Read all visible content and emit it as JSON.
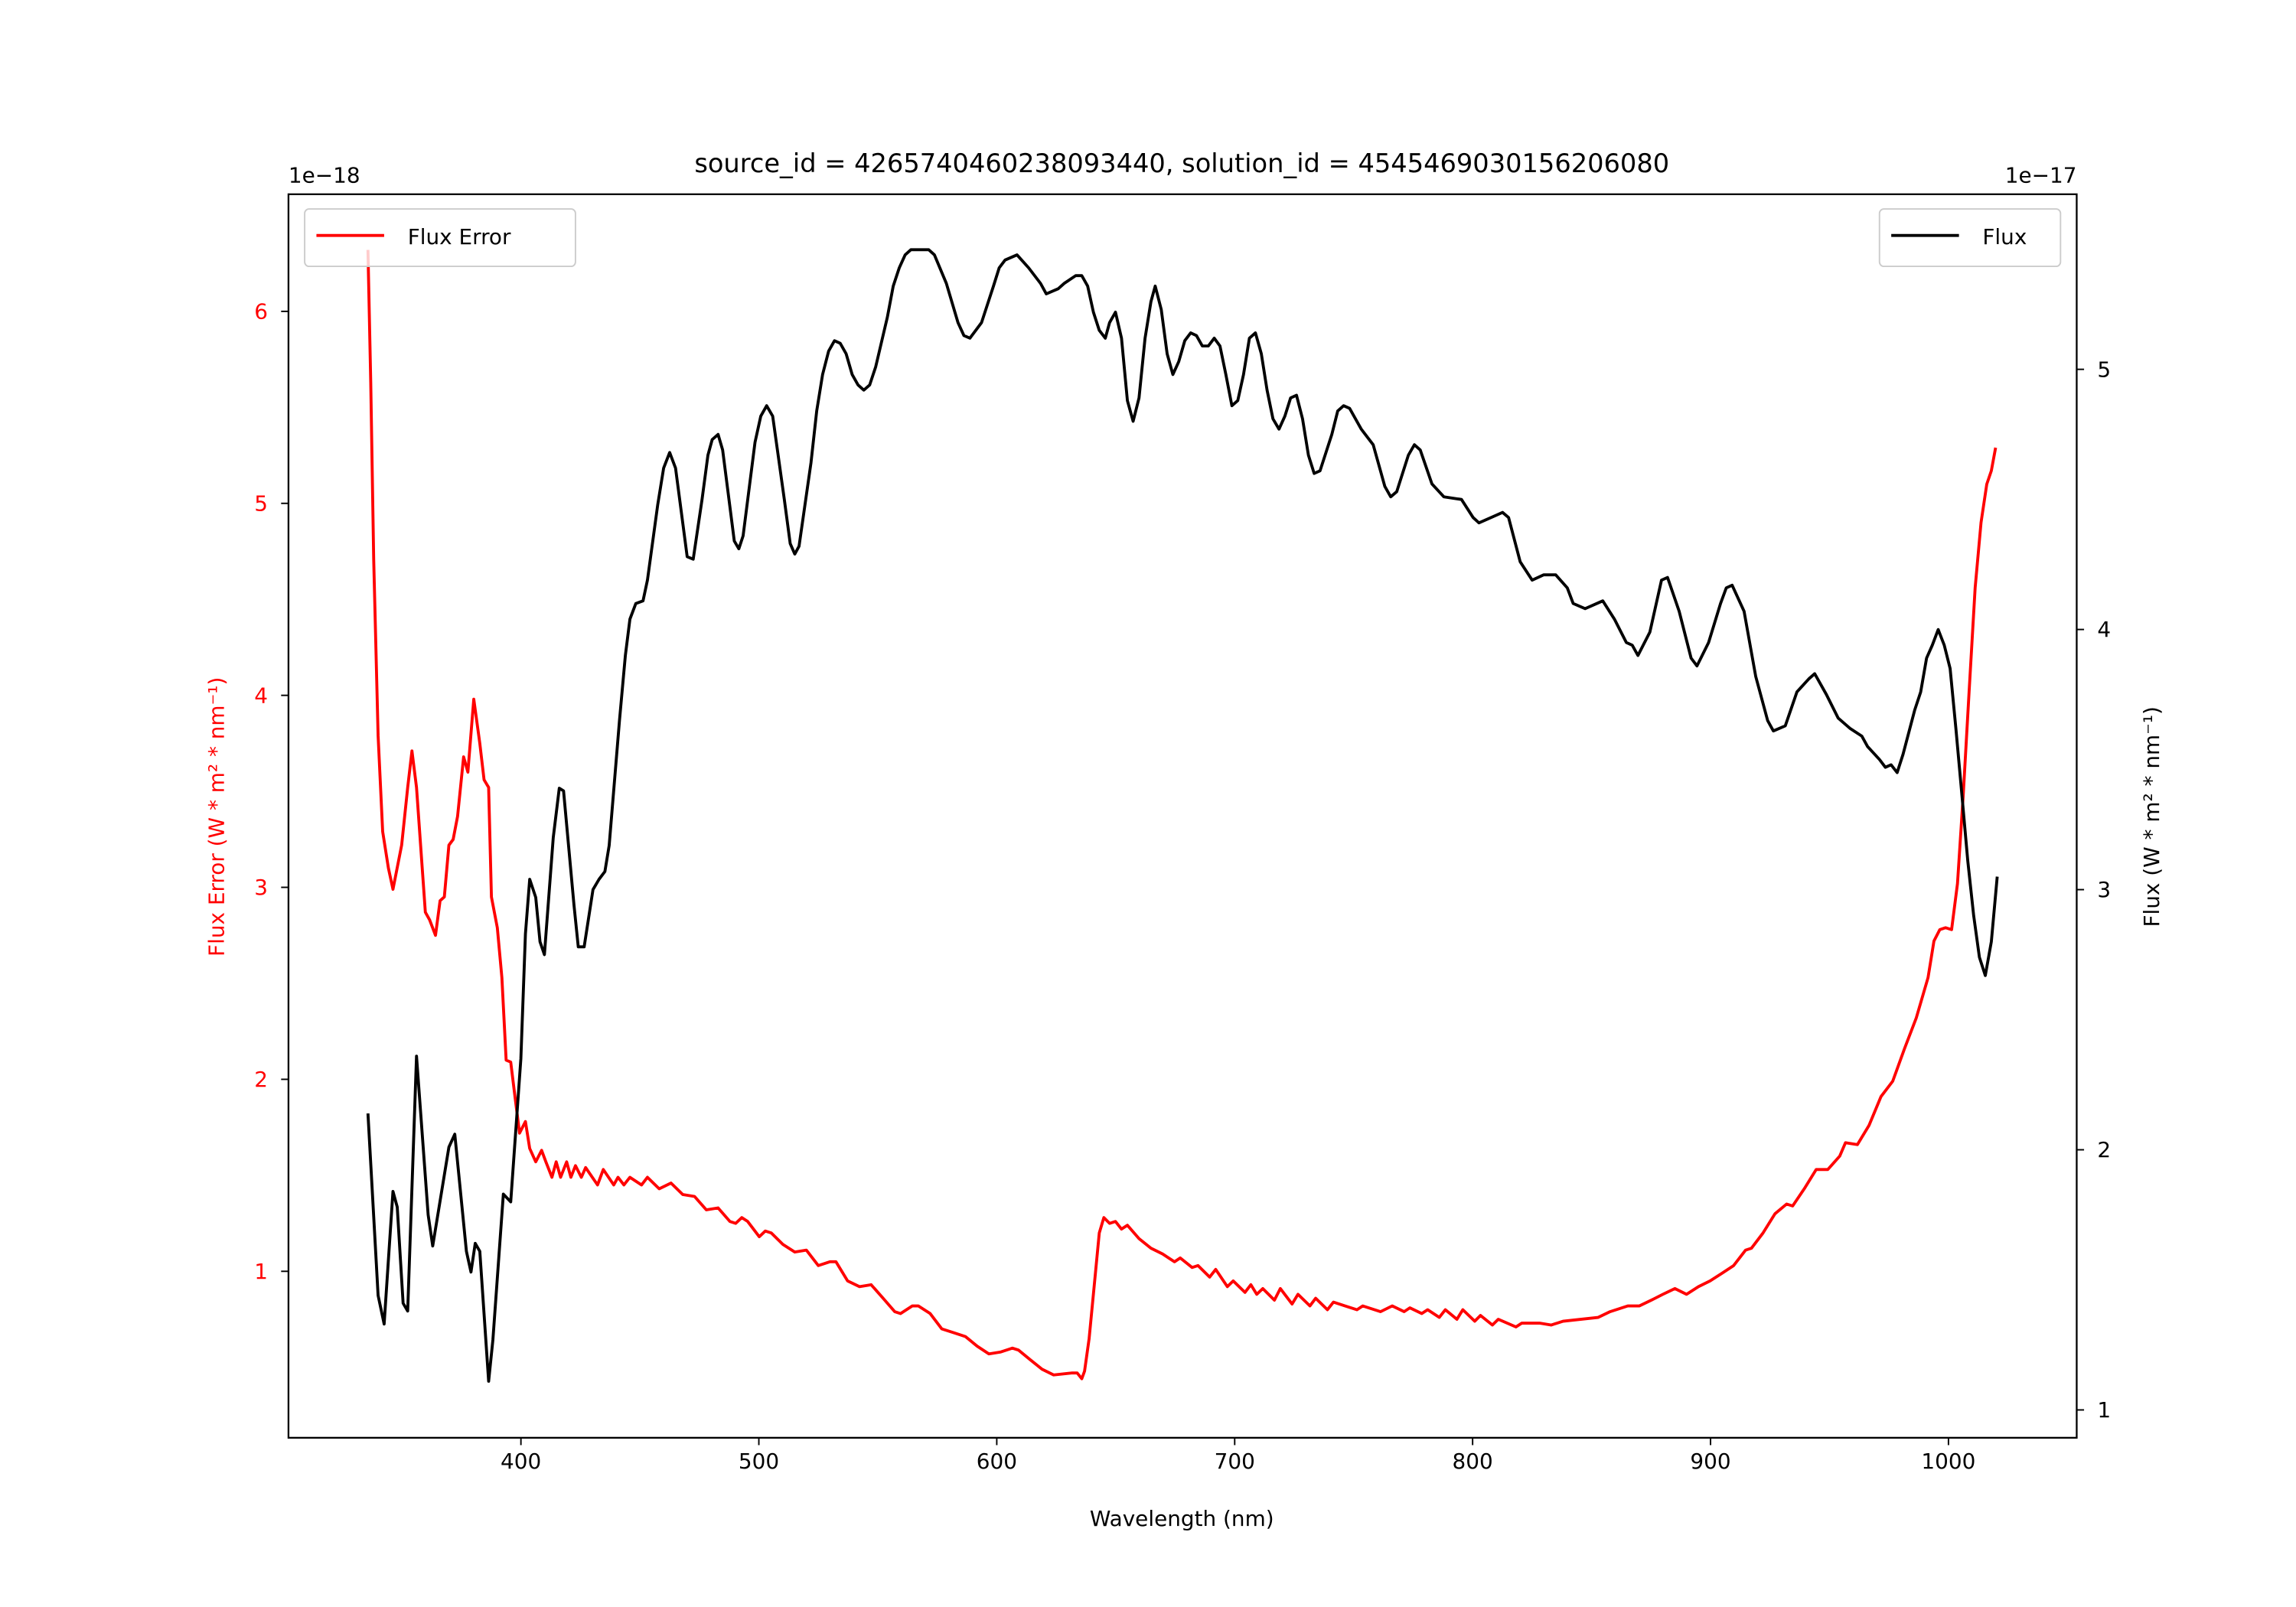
{
  "chart_data": {
    "type": "line",
    "title": "source_id = 4265740460238093440, solution_id = 4545469030156206080",
    "xlabel": "Wavelength (nm)",
    "ylabel_left": "Flux Error (W * m² * nm⁻¹)",
    "ylabel_right": "Flux (W * m² * nm⁻¹)",
    "offset_left": "1e−18",
    "offset_right": "1e−17",
    "xlim": [
      302.3,
      1053.9
    ],
    "ylim_left": [
      0.133,
      6.61
    ],
    "ylim_right": [
      0.893,
      5.673
    ],
    "xticks": [
      400,
      500,
      600,
      700,
      800,
      900,
      1000
    ],
    "yticks_left": [
      1,
      2,
      3,
      4,
      5,
      6
    ],
    "yticks_right": [
      1,
      2,
      3,
      4,
      5
    ],
    "grid": false,
    "colors": {
      "flux_error": "#ff0000",
      "flux": "#000000",
      "left_axis_text": "#ff0000"
    },
    "legend_left": {
      "placement": "top-left",
      "label": "Flux Error"
    },
    "legend_right": {
      "placement": "top-right",
      "label": "Flux"
    },
    "series": [
      {
        "name": "Flux Error",
        "axis": "left",
        "x": [
          335.7,
          336.9,
          338.1,
          340.0,
          341.9,
          344.3,
          346.2,
          349.9,
          352.4,
          354.2,
          356.1,
          359.8,
          361.6,
          364.1,
          366.0,
          367.8,
          369.7,
          371.5,
          373.4,
          375.9,
          377.7,
          380.2,
          382.7,
          384.5,
          386.4,
          387.6,
          390.1,
          392.0,
          393.8,
          395.7,
          397.5,
          399.4,
          401.9,
          403.7,
          406.2,
          408.7,
          410.5,
          413.0,
          414.8,
          416.7,
          419.2,
          421.0,
          422.9,
          425.4,
          427.2,
          432.2,
          434.6,
          439.0,
          440.8,
          443.3,
          445.8,
          450.7,
          453.2,
          458.1,
          463.1,
          468.0,
          473.0,
          477.9,
          482.9,
          487.8,
          490.3,
          492.8,
          495.3,
          500.2,
          502.7,
          505.2,
          510.1,
          515.1,
          520.0,
          525.0,
          529.9,
          532.4,
          537.3,
          542.3,
          547.2,
          552.2,
          557.1,
          559.6,
          564.5,
          567.0,
          572.0,
          576.9,
          581.9,
          586.8,
          591.8,
          596.7,
          601.7,
          606.6,
          609.1,
          614.0,
          619.0,
          623.9,
          631.4,
          633.8,
          635.7,
          636.9,
          638.8,
          640.6,
          643.1,
          645.0,
          647.4,
          649.9,
          652.4,
          654.9,
          659.8,
          664.8,
          669.7,
          674.7,
          677.1,
          682.1,
          684.6,
          689.5,
          692.0,
          696.9,
          699.4,
          704.3,
          706.8,
          709.3,
          711.8,
          716.7,
          719.2,
          724.1,
          726.6,
          731.6,
          734.0,
          739.0,
          741.5,
          746.4,
          751.4,
          753.8,
          761.3,
          766.2,
          771.2,
          773.6,
          778.6,
          781.1,
          786.0,
          788.5,
          793.4,
          795.9,
          800.9,
          803.3,
          808.3,
          810.8,
          818.2,
          820.7,
          828.1,
          833.0,
          838.0,
          845.4,
          852.8,
          857.8,
          865.2,
          870.1,
          875.1,
          880.0,
          885.0,
          889.9,
          894.9,
          899.8,
          904.8,
          909.7,
          914.7,
          917.2,
          922.1,
          927.1,
          932.0,
          934.5,
          939.4,
          944.4,
          949.3,
          954.3,
          956.7,
          961.7,
          966.6,
          971.6,
          976.6,
          981.5,
          986.5,
          991.4,
          993.9,
          996.4,
          998.8,
          1001.3,
          1003.8,
          1006.2,
          1008.7,
          1011.2,
          1013.7,
          1016.1,
          1018.0,
          1019.8
        ],
        "y": [
          6.32,
          5.63,
          4.71,
          3.79,
          3.29,
          3.1,
          2.99,
          3.22,
          3.52,
          3.71,
          3.52,
          2.87,
          2.83,
          2.75,
          2.93,
          2.95,
          3.22,
          3.25,
          3.37,
          3.68,
          3.6,
          3.98,
          3.75,
          3.56,
          3.52,
          2.95,
          2.79,
          2.53,
          2.1,
          2.09,
          1.91,
          1.72,
          1.78,
          1.64,
          1.57,
          1.63,
          1.57,
          1.49,
          1.57,
          1.49,
          1.57,
          1.49,
          1.55,
          1.49,
          1.54,
          1.45,
          1.53,
          1.45,
          1.49,
          1.45,
          1.49,
          1.45,
          1.49,
          1.43,
          1.46,
          1.4,
          1.39,
          1.32,
          1.33,
          1.26,
          1.25,
          1.28,
          1.26,
          1.18,
          1.21,
          1.2,
          1.14,
          1.1,
          1.11,
          1.03,
          1.05,
          1.05,
          0.95,
          0.92,
          0.93,
          0.86,
          0.79,
          0.78,
          0.82,
          0.82,
          0.78,
          0.7,
          0.68,
          0.66,
          0.61,
          0.57,
          0.58,
          0.6,
          0.59,
          0.54,
          0.49,
          0.46,
          0.47,
          0.47,
          0.44,
          0.48,
          0.65,
          0.88,
          1.2,
          1.28,
          1.25,
          1.26,
          1.22,
          1.24,
          1.17,
          1.12,
          1.09,
          1.05,
          1.07,
          1.02,
          1.03,
          0.97,
          1.01,
          0.92,
          0.95,
          0.89,
          0.93,
          0.88,
          0.91,
          0.85,
          0.91,
          0.83,
          0.88,
          0.82,
          0.86,
          0.8,
          0.84,
          0.82,
          0.8,
          0.82,
          0.79,
          0.82,
          0.79,
          0.81,
          0.78,
          0.8,
          0.76,
          0.8,
          0.75,
          0.8,
          0.74,
          0.77,
          0.72,
          0.75,
          0.71,
          0.73,
          0.73,
          0.72,
          0.74,
          0.75,
          0.76,
          0.79,
          0.82,
          0.82,
          0.85,
          0.88,
          0.91,
          0.88,
          0.92,
          0.95,
          0.99,
          1.03,
          1.11,
          1.12,
          1.2,
          1.3,
          1.35,
          1.34,
          1.43,
          1.53,
          1.53,
          1.6,
          1.67,
          1.66,
          1.76,
          1.91,
          1.99,
          2.16,
          2.32,
          2.53,
          2.72,
          2.78,
          2.79,
          2.78,
          3.02,
          3.48,
          4.02,
          4.56,
          4.9,
          5.1,
          5.17,
          5.29
        ]
      },
      {
        "name": "Flux",
        "axis": "right",
        "x": [
          335.7,
          340.0,
          342.5,
          346.2,
          348.0,
          350.5,
          352.4,
          356.1,
          361.0,
          362.9,
          369.7,
          372.2,
          377.1,
          379.0,
          380.8,
          382.7,
          386.4,
          388.2,
          392.6,
          395.7,
          400.0,
          401.9,
          403.7,
          406.2,
          408.0,
          409.9,
          413.6,
          416.1,
          417.9,
          422.3,
          424.1,
          426.6,
          430.3,
          432.8,
          435.3,
          437.1,
          441.4,
          443.9,
          445.8,
          448.3,
          451.3,
          453.2,
          457.5,
          460.0,
          462.5,
          465.0,
          469.9,
          472.4,
          476.1,
          478.6,
          480.4,
          482.9,
          484.8,
          489.7,
          491.6,
          493.4,
          498.4,
          500.8,
          503.3,
          505.8,
          510.7,
          513.2,
          515.1,
          516.9,
          521.9,
          524.3,
          526.8,
          529.3,
          531.8,
          534.2,
          536.7,
          539.2,
          541.7,
          544.1,
          546.6,
          549.1,
          554.0,
          556.5,
          559.0,
          561.5,
          563.9,
          571.4,
          573.8,
          578.8,
          583.7,
          586.2,
          588.7,
          593.6,
          598.6,
          601.0,
          603.5,
          608.5,
          613.4,
          618.4,
          620.8,
          625.8,
          628.3,
          633.2,
          635.7,
          638.2,
          640.6,
          643.1,
          645.6,
          647.4,
          649.9,
          652.4,
          654.9,
          657.3,
          659.8,
          662.3,
          664.8,
          666.6,
          669.1,
          671.6,
          674.0,
          676.5,
          679.0,
          681.5,
          683.9,
          686.4,
          688.9,
          691.4,
          693.8,
          696.3,
          698.8,
          701.3,
          703.7,
          706.2,
          708.7,
          711.2,
          713.6,
          716.1,
          718.6,
          721.1,
          723.5,
          726.0,
          728.5,
          731.0,
          733.4,
          735.9,
          740.8,
          743.3,
          745.8,
          748.3,
          753.2,
          758.2,
          763.1,
          765.6,
          768.1,
          773.0,
          775.5,
          778.0,
          782.9,
          787.9,
          795.3,
          800.2,
          802.7,
          807.7,
          812.6,
          815.1,
          820.0,
          825.0,
          829.9,
          834.9,
          839.8,
          842.3,
          847.3,
          854.7,
          859.6,
          864.6,
          867.1,
          869.5,
          874.5,
          879.4,
          881.9,
          886.8,
          891.8,
          894.3,
          899.2,
          904.2,
          906.6,
          909.1,
          914.1,
          919.0,
          924.0,
          926.4,
          931.4,
          936.3,
          941.3,
          943.8,
          948.7,
          953.6,
          958.6,
          963.6,
          966.0,
          971.0,
          973.5,
          975.9,
          978.4,
          980.9,
          985.8,
          988.3,
          990.8,
          993.2,
          995.7,
          998.2,
          1000.7,
          1003.1,
          1005.6,
          1008.1,
          1010.6,
          1013.0,
          1015.5,
          1018.0,
          1020.5
        ],
        "y": [
          2.14,
          1.44,
          1.33,
          1.84,
          1.78,
          1.41,
          1.38,
          2.36,
          1.75,
          1.63,
          2.01,
          2.06,
          1.61,
          1.53,
          1.64,
          1.61,
          1.11,
          1.27,
          1.83,
          1.8,
          2.35,
          2.83,
          3.04,
          2.97,
          2.8,
          2.75,
          3.2,
          3.39,
          3.38,
          2.94,
          2.78,
          2.78,
          3.0,
          3.04,
          3.07,
          3.17,
          3.65,
          3.9,
          4.04,
          4.1,
          4.11,
          4.19,
          4.48,
          4.62,
          4.68,
          4.62,
          4.28,
          4.27,
          4.5,
          4.67,
          4.73,
          4.75,
          4.69,
          4.34,
          4.31,
          4.36,
          4.72,
          4.82,
          4.86,
          4.82,
          4.5,
          4.33,
          4.29,
          4.32,
          4.64,
          4.84,
          4.98,
          5.07,
          5.11,
          5.1,
          5.06,
          4.98,
          4.94,
          4.92,
          4.94,
          5.01,
          5.2,
          5.32,
          5.39,
          5.44,
          5.46,
          5.46,
          5.44,
          5.33,
          5.18,
          5.13,
          5.12,
          5.18,
          5.32,
          5.39,
          5.42,
          5.44,
          5.39,
          5.33,
          5.29,
          5.31,
          5.33,
          5.36,
          5.36,
          5.32,
          5.22,
          5.15,
          5.12,
          5.18,
          5.22,
          5.12,
          4.88,
          4.8,
          4.89,
          5.12,
          5.26,
          5.32,
          5.23,
          5.06,
          4.98,
          5.03,
          5.11,
          5.14,
          5.13,
          5.09,
          5.09,
          5.12,
          5.09,
          4.98,
          4.86,
          4.88,
          4.98,
          5.12,
          5.14,
          5.06,
          4.92,
          4.81,
          4.77,
          4.82,
          4.89,
          4.9,
          4.81,
          4.67,
          4.6,
          4.61,
          4.75,
          4.84,
          4.86,
          4.85,
          4.77,
          4.71,
          4.55,
          4.51,
          4.53,
          4.67,
          4.71,
          4.69,
          4.56,
          4.51,
          4.5,
          4.43,
          4.41,
          4.43,
          4.45,
          4.43,
          4.26,
          4.19,
          4.21,
          4.21,
          4.16,
          4.1,
          4.08,
          4.11,
          4.04,
          3.95,
          3.94,
          3.9,
          3.99,
          4.19,
          4.2,
          4.07,
          3.89,
          3.86,
          3.95,
          4.1,
          4.16,
          4.17,
          4.07,
          3.82,
          3.65,
          3.61,
          3.63,
          3.76,
          3.81,
          3.83,
          3.75,
          3.66,
          3.62,
          3.59,
          3.55,
          3.5,
          3.47,
          3.48,
          3.45,
          3.52,
          3.69,
          3.76,
          3.89,
          3.94,
          4.0,
          3.94,
          3.85,
          3.62,
          3.37,
          3.11,
          2.9,
          2.74,
          2.67,
          2.8,
          3.05
        ]
      }
    ]
  }
}
